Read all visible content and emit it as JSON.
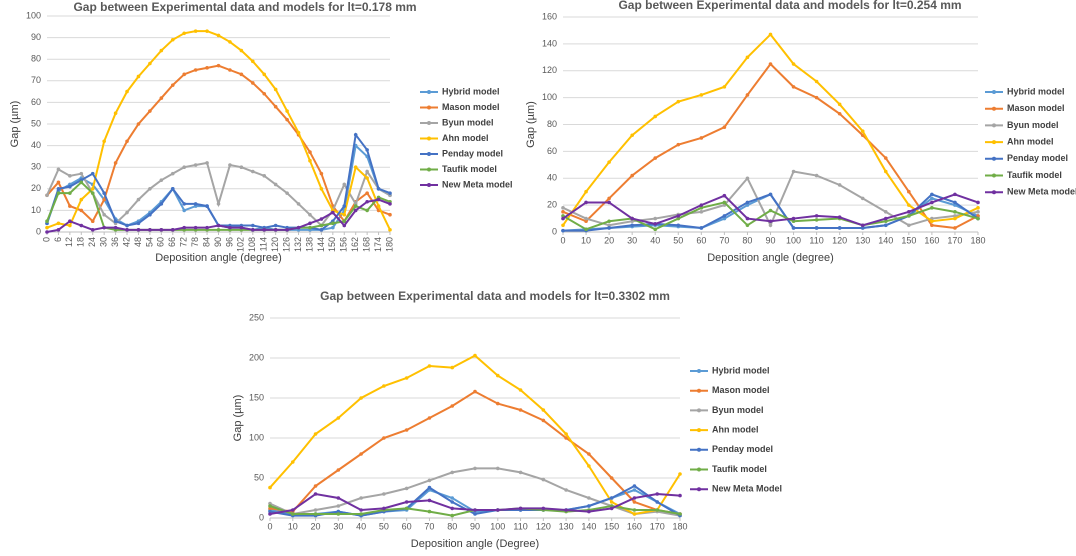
{
  "chart_data": [
    {
      "type": "line",
      "title": "Gap between Experimental data and models for  lt=0.178 mm",
      "x_label": "Deposition angle (degree)",
      "y_label": "Gap (µm)",
      "x": [
        0,
        6,
        12,
        18,
        24,
        30,
        36,
        42,
        48,
        54,
        60,
        66,
        72,
        78,
        84,
        90,
        96,
        102,
        108,
        114,
        120,
        126,
        132,
        138,
        144,
        150,
        156,
        162,
        168,
        174,
        180
      ],
      "xlim": [
        0,
        180
      ],
      "xticks": [
        0,
        6,
        12,
        18,
        24,
        30,
        36,
        42,
        48,
        54,
        60,
        66,
        72,
        78,
        84,
        90,
        96,
        102,
        108,
        114,
        120,
        126,
        132,
        138,
        144,
        150,
        156,
        162,
        168,
        174,
        180
      ],
      "ylim": [
        0,
        100
      ],
      "yticks": [
        0,
        10,
        20,
        30,
        40,
        50,
        60,
        70,
        80,
        90,
        100
      ],
      "grid": true,
      "legend": "right",
      "series": [
        {
          "name": "Hybrid model",
          "color": "#5b9bd5",
          "values": [
            4,
            19,
            22,
            25,
            22,
            15,
            6,
            3,
            5,
            9,
            14,
            20,
            10,
            12,
            12,
            3,
            2,
            2,
            1,
            2,
            1,
            1,
            1,
            1,
            1,
            2,
            10,
            40,
            35,
            20,
            17
          ]
        },
        {
          "name": "Mason model",
          "color": "#ed7d31",
          "values": [
            17,
            23,
            12,
            10,
            5,
            15,
            32,
            42,
            50,
            56,
            62,
            68,
            73,
            75,
            76,
            77,
            75,
            73,
            69,
            64,
            58,
            52,
            45,
            37,
            27,
            12,
            5,
            14,
            18,
            10,
            8
          ]
        },
        {
          "name": "Byun model",
          "color": "#a5a5a5",
          "values": [
            17,
            29,
            26,
            27,
            18,
            8,
            4,
            9,
            15,
            20,
            24,
            27,
            30,
            31,
            32,
            13,
            31,
            30,
            28,
            26,
            22,
            18,
            13,
            8,
            3,
            10,
            22,
            13,
            28,
            20,
            17
          ]
        },
        {
          "name": "Ahn model",
          "color": "#ffc000",
          "values": [
            2,
            4,
            3,
            15,
            20,
            42,
            55,
            65,
            72,
            78,
            84,
            89,
            92,
            93,
            93,
            91,
            88,
            84,
            79,
            73,
            66,
            56,
            46,
            33,
            20,
            10,
            8,
            30,
            25,
            12,
            1
          ]
        },
        {
          "name": "Penday model",
          "color": "#4472c4",
          "values": [
            4,
            20,
            21,
            24,
            27,
            18,
            5,
            3,
            4,
            8,
            13,
            20,
            13,
            13,
            12,
            3,
            3,
            3,
            3,
            2,
            3,
            2,
            2,
            2,
            1,
            5,
            12,
            45,
            38,
            20,
            18
          ]
        },
        {
          "name": "Taufik model",
          "color": "#70ad47",
          "values": [
            5,
            18,
            18,
            23,
            18,
            2,
            1,
            1,
            1,
            1,
            1,
            1,
            1,
            1,
            1,
            1,
            1,
            1,
            1,
            1,
            1,
            1,
            2,
            2,
            3,
            4,
            5,
            12,
            10,
            16,
            14
          ]
        },
        {
          "name": "New Meta model",
          "color": "#7030a0",
          "values": [
            0,
            1,
            5,
            3,
            1,
            2,
            2,
            1,
            1,
            1,
            1,
            1,
            2,
            2,
            2,
            3,
            2,
            2,
            1,
            1,
            1,
            1,
            2,
            4,
            6,
            9,
            3,
            10,
            14,
            15,
            13
          ]
        }
      ]
    },
    {
      "type": "line",
      "title": "Gap between Experimental data and models for lt=0.254 mm",
      "x_label": "Deposition angle (degree)",
      "y_label": "Gap (µm)",
      "x": [
        0,
        10,
        20,
        30,
        40,
        50,
        60,
        70,
        80,
        90,
        100,
        110,
        120,
        130,
        140,
        150,
        160,
        170,
        180
      ],
      "xlim": [
        0,
        180
      ],
      "xticks": [
        0,
        10,
        20,
        30,
        40,
        50,
        60,
        70,
        80,
        90,
        100,
        110,
        120,
        130,
        140,
        150,
        160,
        170,
        180
      ],
      "ylim": [
        0,
        160
      ],
      "yticks": [
        0,
        20,
        40,
        60,
        80,
        100,
        120,
        140,
        160
      ],
      "grid": true,
      "legend": "right",
      "series": [
        {
          "name": "Hybrid model",
          "color": "#5b9bd5",
          "values": [
            1,
            2,
            3,
            4,
            5,
            4,
            3,
            10,
            20,
            28,
            3,
            3,
            3,
            3,
            5,
            12,
            25,
            20,
            12
          ]
        },
        {
          "name": "Mason model",
          "color": "#ed7d31",
          "values": [
            15,
            8,
            25,
            42,
            55,
            65,
            70,
            78,
            102,
            125,
            108,
            100,
            88,
            72,
            55,
            30,
            5,
            3,
            12
          ]
        },
        {
          "name": "Byun model",
          "color": "#a5a5a5",
          "values": [
            18,
            10,
            5,
            8,
            10,
            13,
            15,
            20,
            40,
            5,
            45,
            42,
            35,
            25,
            15,
            5,
            10,
            12,
            15
          ]
        },
        {
          "name": "Ahn model",
          "color": "#ffc000",
          "values": [
            5,
            30,
            52,
            72,
            86,
            97,
            102,
            108,
            130,
            147,
            125,
            112,
            95,
            75,
            45,
            20,
            8,
            10,
            18
          ]
        },
        {
          "name": "Penday model",
          "color": "#4472c4",
          "values": [
            1,
            1,
            3,
            5,
            6,
            5,
            3,
            12,
            22,
            28,
            3,
            3,
            3,
            3,
            5,
            12,
            28,
            22,
            10
          ]
        },
        {
          "name": "Taufik model",
          "color": "#70ad47",
          "values": [
            12,
            2,
            8,
            10,
            2,
            10,
            18,
            22,
            5,
            16,
            8,
            9,
            10,
            5,
            8,
            12,
            18,
            15,
            10
          ]
        },
        {
          "name": "New Meta model",
          "color": "#7030a0",
          "values": [
            10,
            22,
            22,
            10,
            6,
            12,
            20,
            27,
            10,
            8,
            10,
            12,
            11,
            5,
            10,
            15,
            22,
            28,
            22
          ]
        }
      ]
    },
    {
      "type": "line",
      "title": "Gap between Experimental data and models for lt=0.3302 mm",
      "x_label": "Deposition angle (Degree)",
      "y_label": "Gap (µm)",
      "x": [
        0,
        10,
        20,
        30,
        40,
        50,
        60,
        70,
        80,
        90,
        100,
        110,
        120,
        130,
        140,
        150,
        160,
        170,
        180
      ],
      "xlim": [
        0,
        180
      ],
      "xticks": [
        0,
        10,
        20,
        30,
        40,
        50,
        60,
        70,
        80,
        90,
        100,
        110,
        120,
        130,
        140,
        150,
        160,
        170,
        180
      ],
      "ylim": [
        0,
        250
      ],
      "yticks": [
        0,
        50,
        100,
        150,
        200,
        250
      ],
      "grid": true,
      "legend": "right",
      "series": [
        {
          "name": "Hybrid model",
          "color": "#5b9bd5",
          "values": [
            10,
            5,
            5,
            8,
            3,
            8,
            10,
            35,
            25,
            8,
            10,
            10,
            10,
            10,
            15,
            25,
            35,
            20,
            5
          ]
        },
        {
          "name": "Mason model",
          "color": "#ed7d31",
          "values": [
            12,
            8,
            40,
            60,
            80,
            100,
            110,
            125,
            140,
            158,
            143,
            135,
            122,
            100,
            80,
            50,
            20,
            10,
            5
          ]
        },
        {
          "name": "Byun model",
          "color": "#a5a5a5",
          "values": [
            18,
            5,
            10,
            15,
            25,
            30,
            37,
            47,
            57,
            62,
            62,
            57,
            48,
            35,
            25,
            15,
            5,
            8,
            3
          ]
        },
        {
          "name": "Ahn model",
          "color": "#ffc000",
          "values": [
            38,
            70,
            105,
            125,
            150,
            165,
            175,
            190,
            188,
            203,
            178,
            160,
            135,
            105,
            65,
            20,
            5,
            10,
            55
          ]
        },
        {
          "name": "Penday model",
          "color": "#4472c4",
          "values": [
            8,
            3,
            3,
            8,
            3,
            8,
            12,
            38,
            20,
            5,
            10,
            10,
            10,
            10,
            15,
            25,
            40,
            20,
            3
          ]
        },
        {
          "name": "Taufik model",
          "color": "#70ad47",
          "values": [
            15,
            5,
            5,
            5,
            5,
            10,
            12,
            8,
            3,
            10,
            10,
            12,
            10,
            8,
            10,
            15,
            10,
            10,
            5
          ]
        },
        {
          "name": "New Meta Model",
          "color": "#7030a0",
          "values": [
            5,
            10,
            30,
            25,
            10,
            12,
            20,
            22,
            12,
            10,
            10,
            12,
            12,
            10,
            8,
            12,
            25,
            30,
            28
          ]
        }
      ]
    }
  ]
}
